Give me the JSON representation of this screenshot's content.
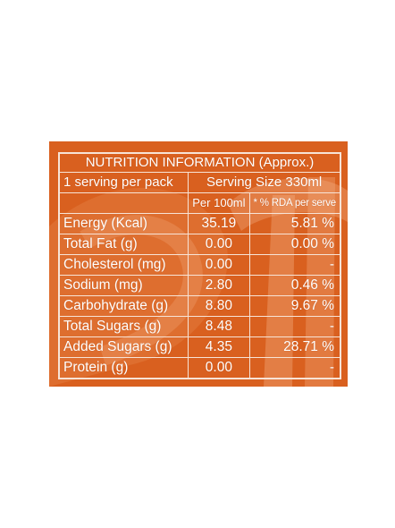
{
  "panel": {
    "title": "NUTRITION INFORMATION (Approx.)",
    "serving_per_pack": "1 serving per pack",
    "serving_size": "Serving Size 330ml",
    "col_per100": "Per 100ml",
    "col_rda": "* % RDA per serve",
    "rows": [
      {
        "name": "Energy (Kcal)",
        "per100": "35.19",
        "rda": "5.81 %"
      },
      {
        "name": "Total Fat (g)",
        "per100": "0.00",
        "rda": "0.00 %"
      },
      {
        "name": "Cholesterol (mg)",
        "per100": "0.00",
        "rda": "-"
      },
      {
        "name": "Sodium (mg)",
        "per100": "2.80",
        "rda": "0.46 %"
      },
      {
        "name": "Carbohydrate (g)",
        "per100": "8.80",
        "rda": "9.67 %"
      },
      {
        "name": "Total Sugars (g)",
        "per100": "8.48",
        "rda": "-"
      },
      {
        "name": "Added Sugars (g)",
        "per100": "4.35",
        "rda": "28.71 %"
      },
      {
        "name": "Protein (g)",
        "per100": "0.00",
        "rda": "-"
      }
    ]
  },
  "colors": {
    "panel_bg": "#d9601f",
    "line": "#f7e3d6",
    "text": "#ffffff"
  }
}
